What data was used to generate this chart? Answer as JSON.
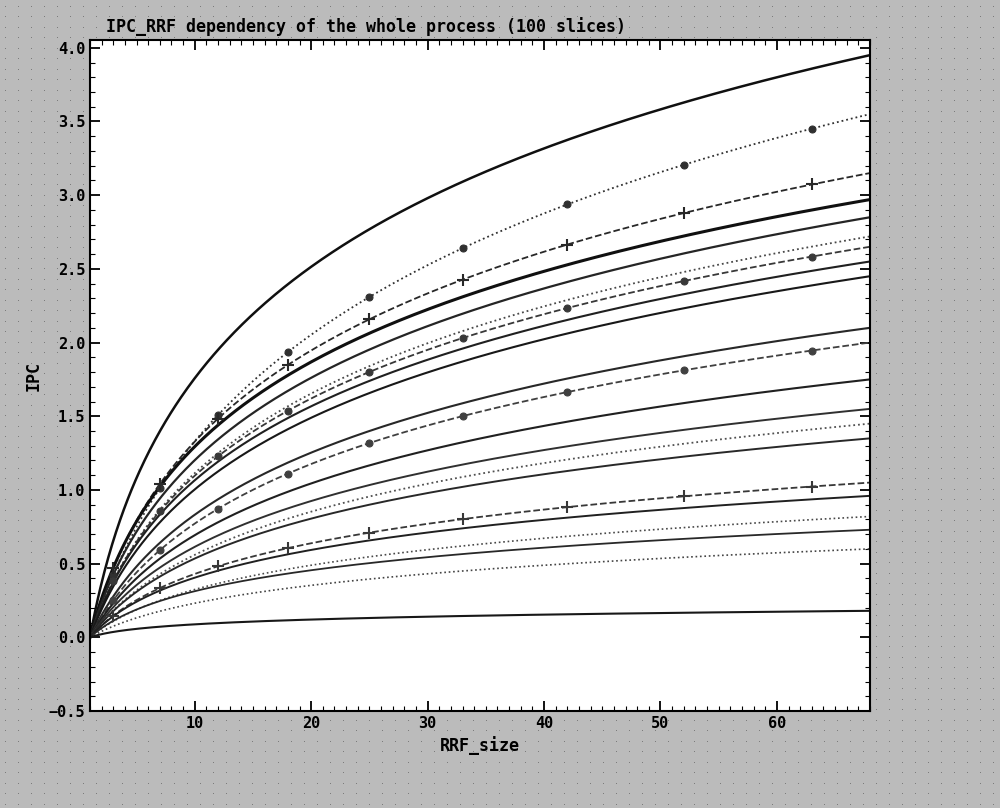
{
  "title": "IPC_RRF dependency of the whole process (100 slices)",
  "xlabel": "RRF_size",
  "ylabel": "IPC",
  "xlim": [
    1,
    68
  ],
  "ylim": [
    -0.5,
    4.05
  ],
  "xticks": [
    10,
    20,
    30,
    40,
    50,
    60
  ],
  "yticks": [
    -0.5,
    0.0,
    0.5,
    1.0,
    1.5,
    2.0,
    2.5,
    3.0,
    3.5,
    4.0
  ],
  "bg_color": "#bbbbbb",
  "plot_bg": "#ffffff",
  "curves": [
    {
      "A": 3.95,
      "k": 0.35,
      "style": "-",
      "color": "#101010",
      "marker": null,
      "mk": null,
      "lw": 1.8
    },
    {
      "A": 3.55,
      "k": 0.18,
      "style": ":",
      "color": "#303030",
      "marker": "o",
      "mk": 4,
      "lw": 1.3
    },
    {
      "A": 3.15,
      "k": 0.28,
      "style": "--",
      "color": "#282828",
      "marker": "+",
      "mk": 8,
      "lw": 1.3
    },
    {
      "A": 2.97,
      "k": 0.32,
      "style": "-",
      "color": "#101010",
      "marker": null,
      "mk": null,
      "lw": 2.2
    },
    {
      "A": 2.85,
      "k": 0.28,
      "style": "-",
      "color": "#252525",
      "marker": null,
      "mk": null,
      "lw": 1.6
    },
    {
      "A": 2.72,
      "k": 0.25,
      "style": ":",
      "color": "#484848",
      "marker": null,
      "mk": null,
      "lw": 1.3
    },
    {
      "A": 2.65,
      "k": 0.26,
      "style": "--",
      "color": "#383838",
      "marker": "o",
      "mk": 4,
      "lw": 1.3
    },
    {
      "A": 2.55,
      "k": 0.27,
      "style": "-",
      "color": "#202020",
      "marker": null,
      "mk": null,
      "lw": 1.5
    },
    {
      "A": 2.45,
      "k": 0.25,
      "style": "-",
      "color": "#181818",
      "marker": null,
      "mk": null,
      "lw": 1.5
    },
    {
      "A": 2.1,
      "k": 0.22,
      "style": "-",
      "color": "#282828",
      "marker": null,
      "mk": null,
      "lw": 1.5
    },
    {
      "A": 2.0,
      "k": 0.2,
      "style": "--",
      "color": "#404040",
      "marker": "o",
      "mk": 4,
      "lw": 1.3
    },
    {
      "A": 1.75,
      "k": 0.22,
      "style": "-",
      "color": "#202020",
      "marker": null,
      "mk": null,
      "lw": 1.5
    },
    {
      "A": 1.55,
      "k": 0.22,
      "style": "-",
      "color": "#303030",
      "marker": null,
      "mk": null,
      "lw": 1.4
    },
    {
      "A": 1.45,
      "k": 0.2,
      "style": ":",
      "color": "#505050",
      "marker": null,
      "mk": null,
      "lw": 1.3
    },
    {
      "A": 1.35,
      "k": 0.22,
      "style": "-",
      "color": "#282828",
      "marker": null,
      "mk": null,
      "lw": 1.4
    },
    {
      "A": 1.05,
      "k": 0.25,
      "style": "--",
      "color": "#383838",
      "marker": "+",
      "mk": 8,
      "lw": 1.3
    },
    {
      "A": 0.96,
      "k": 0.28,
      "style": "-",
      "color": "#202020",
      "marker": null,
      "mk": null,
      "lw": 1.4
    },
    {
      "A": 0.82,
      "k": 0.22,
      "style": ":",
      "color": "#484848",
      "marker": null,
      "mk": null,
      "lw": 1.2
    },
    {
      "A": 0.73,
      "k": 0.3,
      "style": "-",
      "color": "#282828",
      "marker": null,
      "mk": null,
      "lw": 1.3
    },
    {
      "A": 0.6,
      "k": 0.2,
      "style": ":",
      "color": "#444444",
      "marker": null,
      "mk": null,
      "lw": 1.2
    },
    {
      "A": 0.18,
      "k": 0.55,
      "style": "-",
      "color": "#181818",
      "marker": null,
      "mk": null,
      "lw": 1.5
    }
  ],
  "scatter_curves": [
    {
      "A": 3.55,
      "k": 0.18,
      "color": "#303030",
      "marker": "o",
      "ms": 5
    },
    {
      "A": 3.15,
      "k": 0.28,
      "color": "#282828",
      "marker": "+",
      "ms": 9
    },
    {
      "A": 2.65,
      "k": 0.26,
      "color": "#383838",
      "marker": "o",
      "ms": 5
    },
    {
      "A": 2.0,
      "k": 0.2,
      "color": "#404040",
      "marker": "o",
      "ms": 5
    },
    {
      "A": 1.05,
      "k": 0.25,
      "color": "#383838",
      "marker": "+",
      "ms": 9
    }
  ]
}
